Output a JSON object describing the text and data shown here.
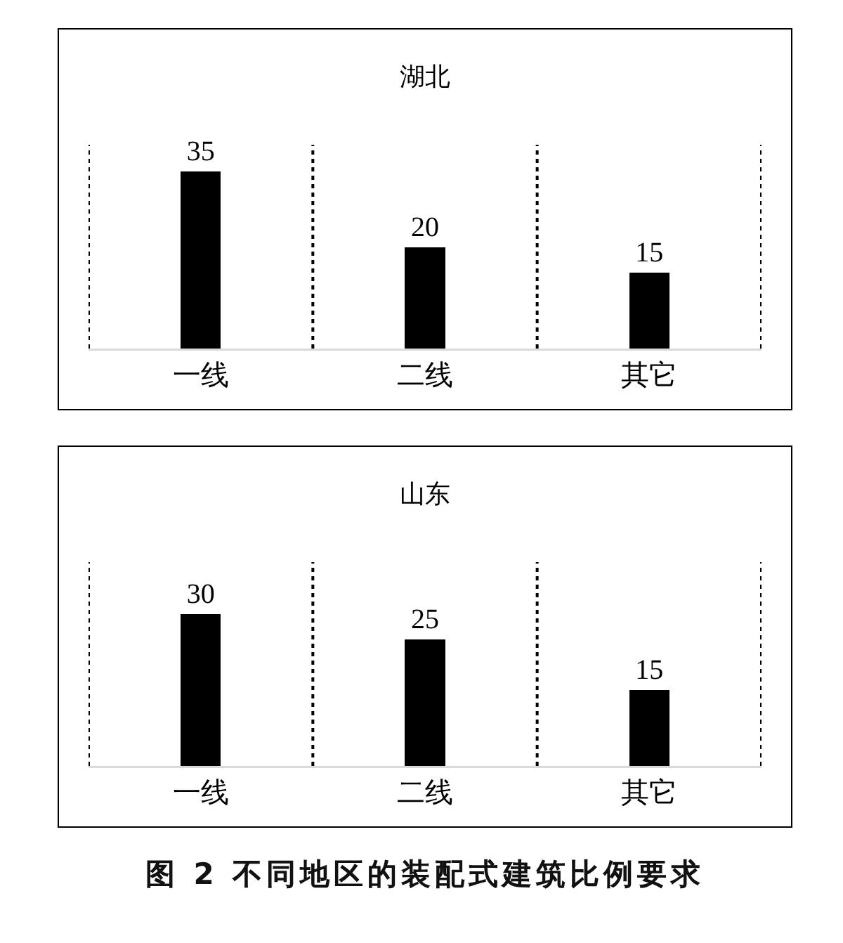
{
  "chart_data": [
    {
      "type": "bar",
      "title": "湖北",
      "categories": [
        "一线",
        "二线",
        "其它"
      ],
      "values": [
        35,
        20,
        15
      ],
      "color": "#000000",
      "data_labels": true,
      "grid": "x",
      "tick_labels": "x"
    },
    {
      "type": "bar",
      "title": "山东",
      "categories": [
        "一线",
        "二线",
        "其它"
      ],
      "values": [
        30,
        25,
        15
      ],
      "color": "#000000",
      "data_labels": true,
      "grid": "x",
      "tick_labels": "x",
      "annotations": [
        "图 2  不同地区的装配式建筑比例要求"
      ]
    }
  ]
}
